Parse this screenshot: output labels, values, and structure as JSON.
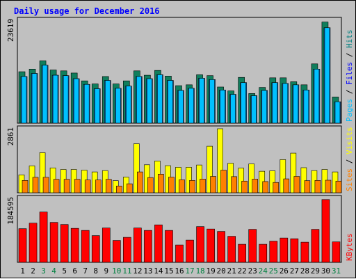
{
  "chart_data": {
    "type": "bar",
    "title": "Daily usage for December 2016",
    "categories": [
      "1",
      "2",
      "3",
      "4",
      "5",
      "6",
      "7",
      "8",
      "9",
      "10",
      "11",
      "12",
      "13",
      "14",
      "15",
      "16",
      "17",
      "18",
      "19",
      "20",
      "21",
      "22",
      "23",
      "24",
      "25",
      "26",
      "27",
      "28",
      "29",
      "30",
      "31"
    ],
    "weekend_days": [
      "3",
      "4",
      "10",
      "11",
      "17",
      "18",
      "24",
      "25",
      "31"
    ],
    "panels": [
      {
        "name": "hits-files-pages",
        "max_label": "23619",
        "ymax": 23619,
        "right_label": [
          "Pages",
          " / ",
          "Files",
          " / ",
          "Hits"
        ],
        "right_label_colors": [
          "#00c0ff",
          "#000000",
          "#0000ff",
          "#000000",
          "#008080"
        ],
        "series": [
          {
            "name": "Hits",
            "color": "#107e5c",
            "values": [
              11800,
              12400,
              14300,
              12200,
              12000,
              11500,
              9700,
              9000,
              10700,
              9000,
              9700,
              12000,
              11000,
              12100,
              10800,
              8600,
              8800,
              11100,
              10900,
              8300,
              7400,
              10500,
              6800,
              8200,
              10400,
              10400,
              9500,
              8800,
              13600,
              23200,
              6000
            ]
          },
          {
            "name": "Files",
            "color": "#1880e8",
            "values": [
              10700,
              11400,
              13300,
              11000,
              10900,
              10200,
              8900,
              7900,
              9800,
              8000,
              8500,
              10700,
              10200,
              11100,
              9800,
              7500,
              8000,
              10300,
              10000,
              7600,
              6600,
              9300,
              6300,
              7500,
              9300,
              9100,
              8800,
              7600,
              12400,
              21900,
              4900
            ]
          },
          {
            "name": "Pages",
            "color": "#00c0ff",
            "values": [
              10700,
              11400,
              13300,
              11000,
              10900,
              10200,
              8900,
              7900,
              9800,
              8000,
              8500,
              10700,
              10200,
              11100,
              9800,
              7500,
              8000,
              10300,
              10000,
              7600,
              6600,
              9300,
              6300,
              7500,
              9300,
              9100,
              8800,
              7600,
              12400,
              21900,
              4900
            ]
          }
        ]
      },
      {
        "name": "visits-sites",
        "max_label": "2861",
        "ymax": 2861,
        "right_label": [
          "Sites",
          " / ",
          "Visits"
        ],
        "right_label_colors": [
          "#ff8000",
          "#000000",
          "#ffff00"
        ],
        "series": [
          {
            "name": "Visits",
            "color": "#ffff00",
            "values": [
              800,
              1200,
              1790,
              1110,
              1040,
              1040,
              1010,
              930,
              990,
              540,
              700,
              2190,
              1250,
              1420,
              1210,
              1140,
              1140,
              1240,
              2080,
              2861,
              1320,
              1100,
              1290,
              960,
              980,
              1480,
              1770,
              1120,
              990,
              1040,
              930
            ]
          },
          {
            "name": "Sites",
            "color": "#ff8000",
            "values": [
              550,
              690,
              690,
              600,
              600,
              600,
              570,
              570,
              600,
              300,
              400,
              930,
              680,
              830,
              700,
              580,
              550,
              610,
              730,
              1010,
              720,
              520,
              610,
              500,
              460,
              620,
              730,
              540,
              550,
              560,
              520
            ]
          }
        ]
      },
      {
        "name": "kbytes",
        "max_label": "184595",
        "ymax": 184595,
        "right_label": [
          "KBytes"
        ],
        "right_label_colors": [
          "#ff0000"
        ],
        "series": [
          {
            "name": "KBytes",
            "color": "#ff0000",
            "values": [
              97000,
              113000,
              145000,
              115000,
              109000,
              98000,
              92000,
              77000,
              99000,
              63000,
              72000,
              99000,
              92000,
              108000,
              92000,
              50000,
              64000,
              103000,
              96000,
              89000,
              75000,
              52000,
              95000,
              52000,
              61000,
              70000,
              68000,
              58000,
              95000,
              181000,
              59000
            ]
          }
        ]
      }
    ]
  }
}
